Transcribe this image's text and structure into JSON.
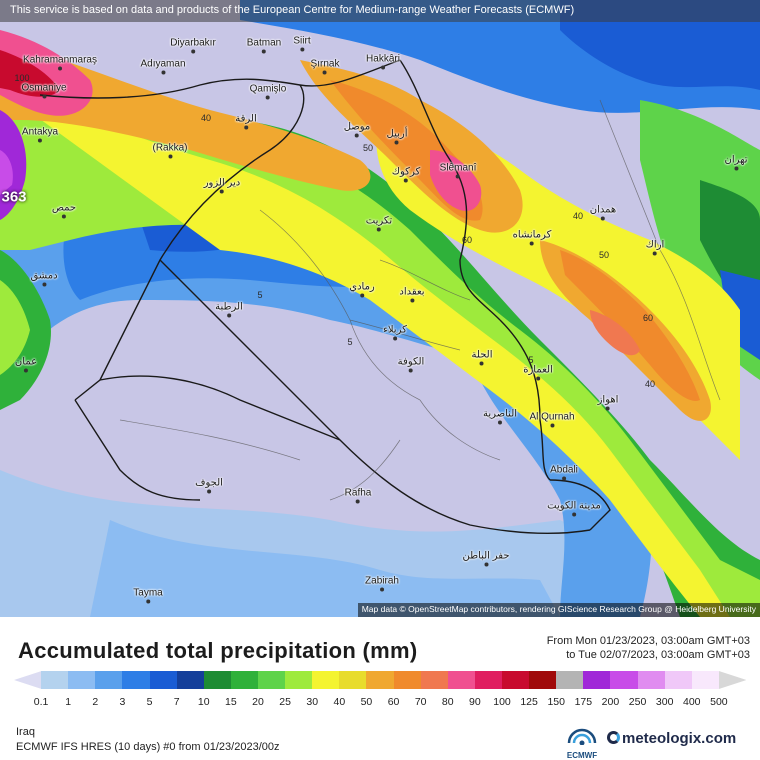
{
  "notice": "This service is based on data and products of the European Centre for Medium-range Weather Forecasts (ECMWF)",
  "attribution": "Map data © OpenStreetMap contributors, rendering GIScience Research Group @ Heidelberg University",
  "title": "Accumulated total precipitation (mm)",
  "period": {
    "from": "From Mon 01/23/2023, 03:00am GMT+03",
    "to": "to Tue 02/07/2023, 03:00am GMT+03"
  },
  "region": "Iraq",
  "model": "ECMWF IFS HRES (10 days) #0 from 01/23/2023/00z",
  "ecmwf_label": "ECMWF",
  "logo": "meteologix.com",
  "max_value_label": "363",
  "contour_labels": [
    "100",
    "50",
    "40",
    "60",
    "40",
    "5",
    "5",
    "60",
    "50",
    "40",
    "5"
  ],
  "places": [
    "Diyarbakır",
    "Batman",
    "Siirt",
    "Kahramanmaraş",
    "Adıyaman",
    "Şırnak",
    "Hakkâri",
    "Osmaniye",
    "Qamişlo",
    "Antakya",
    "(Rakka)",
    "Slêmanî",
    "دير الزور",
    "الرقة",
    "أربيل",
    "موصل",
    "كركوك",
    "تكريت",
    "بعقداد",
    "رمادي",
    "كربلاء",
    "الرطبة",
    "الكوفة",
    "الحلة",
    "الناصرية",
    "Al Qurnah",
    "العمارة",
    "Abdali",
    "مدينة الكويت",
    "Rafha",
    "Zabirah",
    "Tayma",
    "الجوف",
    "كرمانشاه",
    "همدان",
    "اراك",
    "تهران",
    "اهواز",
    "حفر الباطن",
    "دمشق",
    "حمص",
    "عمان"
  ],
  "colorbar": {
    "ticks": [
      "0.1",
      "1",
      "2",
      "3",
      "5",
      "7",
      "10",
      "15",
      "20",
      "25",
      "30",
      "40",
      "50",
      "60",
      "70",
      "80",
      "90",
      "100",
      "125",
      "150",
      "175",
      "200",
      "250",
      "300",
      "400",
      "500"
    ],
    "colors": [
      "#dcdcf2",
      "#b4d2ee",
      "#8cbcf2",
      "#5aa0ec",
      "#2e7ee6",
      "#1a5cd4",
      "#153f9a",
      "#1e8c34",
      "#2fb13a",
      "#5ed34a",
      "#9eea3c",
      "#f4f430",
      "#e8dc2c",
      "#f0a830",
      "#f08a2c",
      "#f07850",
      "#f05090",
      "#e01e60",
      "#c80a2e",
      "#a00a0a",
      "#b4b4b4",
      "#a028d8",
      "#c84ce8",
      "#e08cf0",
      "#f0c8f8",
      "#f8e8fc",
      "#d8d8d8"
    ]
  }
}
